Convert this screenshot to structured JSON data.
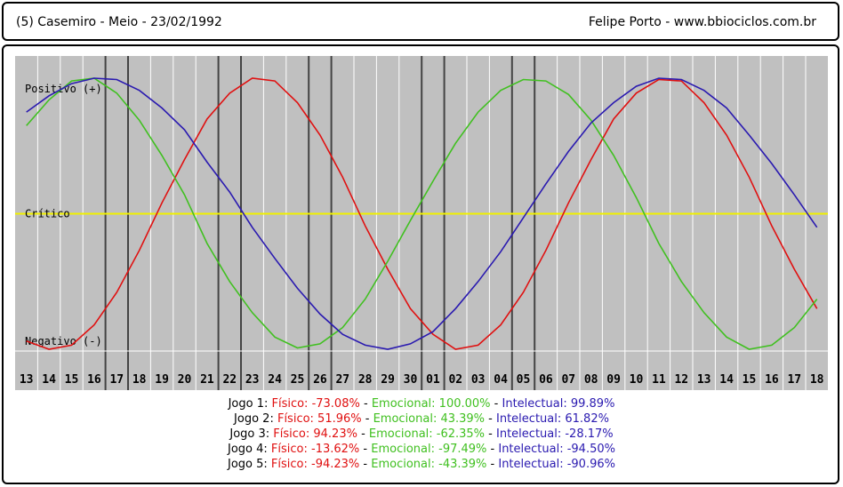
{
  "header": {
    "left_title": "(5)  Casemiro - Meio -  23/02/1992",
    "right_title": "Felipe Porto   -   www.bbiociclos.com.br"
  },
  "chart_data": {
    "type": "line",
    "y_labels": {
      "positive": "Positivo (+)",
      "critical": "Crítico",
      "negative": "Negativo (-)"
    },
    "x": [
      "13",
      "14",
      "15",
      "16",
      "17",
      "18",
      "19",
      "20",
      "21",
      "22",
      "23",
      "24",
      "25",
      "26",
      "27",
      "28",
      "29",
      "30",
      "01",
      "02",
      "03",
      "04",
      "05",
      "06",
      "07",
      "08",
      "09",
      "10",
      "11",
      "12",
      "13",
      "14",
      "15",
      "16",
      "17",
      "18"
    ],
    "ylim": [
      -100,
      100
    ],
    "grid": true,
    "highlighted_days": [
      "17",
      "22",
      "26",
      "01",
      "05"
    ],
    "series": [
      {
        "name": "Físico",
        "color": "#e01010",
        "values": [
          -94,
          -100,
          -97,
          -82,
          -58,
          -27,
          8,
          40,
          70,
          89,
          100,
          98,
          82,
          58,
          27,
          -9,
          -41,
          -70,
          -89,
          -100,
          -97,
          -82,
          -58,
          -27,
          8,
          40,
          70,
          89,
          99,
          98,
          82,
          58,
          27,
          -9,
          -41,
          -70
        ]
      },
      {
        "name": "Emocional",
        "color": "#40c020",
        "values": [
          65,
          84,
          98,
          100,
          89,
          69,
          43,
          14,
          -22,
          -50,
          -73,
          -91,
          -99,
          -96,
          -84,
          -63,
          -35,
          -5,
          24,
          52,
          75,
          91,
          99,
          98,
          88,
          69,
          43,
          12,
          -22,
          -50,
          -73,
          -91,
          -100,
          -97,
          -84,
          -63
        ]
      },
      {
        "name": "Intelectual",
        "color": "#2a1ab0",
        "values": [
          75,
          87,
          96,
          100,
          99,
          91,
          78,
          62,
          38,
          16,
          -10,
          -33,
          -55,
          -74,
          -89,
          -97,
          -100,
          -96,
          -87,
          -70,
          -50,
          -28,
          -3,
          22,
          46,
          67,
          82,
          94,
          100,
          99,
          91,
          78,
          58,
          37,
          14,
          -10
        ]
      }
    ]
  },
  "legend": [
    {
      "label": "Jogo 1:",
      "fisico": "Físico: -73.08%",
      "emocional": "Emocional: 100.00%",
      "intelectual": "Intelectual: 99.89%"
    },
    {
      "label": "Jogo 2:",
      "fisico": "Físico: 51.96%",
      "emocional": "Emocional: 43.39%",
      "intelectual": "Intelectual: 61.82%"
    },
    {
      "label": "Jogo 3:",
      "fisico": "Físico: 94.23%",
      "emocional": "Emocional: -62.35%",
      "intelectual": "Intelectual: -28.17%"
    },
    {
      "label": "Jogo 4:",
      "fisico": "Físico: -13.62%",
      "emocional": "Emocional: -97.49%",
      "intelectual": "Intelectual: -94.50%"
    },
    {
      "label": "Jogo 5:",
      "fisico": "Físico: -94.23%",
      "emocional": "Emocional: -43.39%",
      "intelectual": "Intelectual: -90.96%"
    }
  ],
  "separator": " - "
}
